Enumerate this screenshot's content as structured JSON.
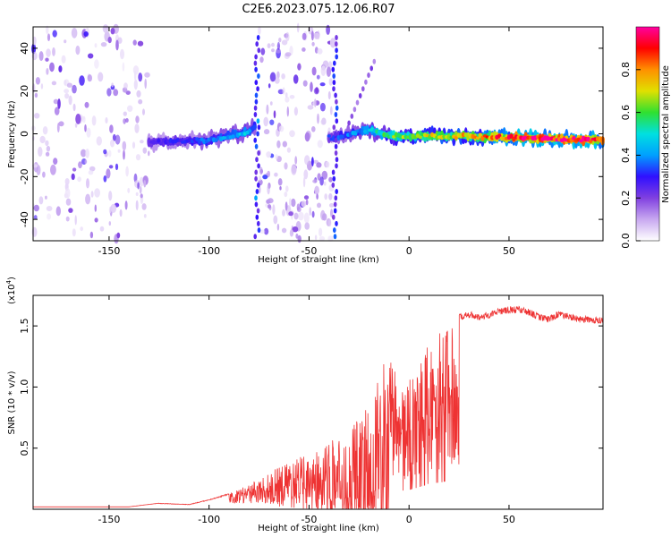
{
  "title": "C2E6.2023.075.12.06.R07",
  "colors": {
    "snr_line": "#ee3333",
    "colormap": [
      "#ffffff",
      "#c8a8f0",
      "#8040e0",
      "#3010ff",
      "#00a0ff",
      "#00e0e0",
      "#30e030",
      "#e0e000",
      "#ff9000",
      "#ff0000",
      "#ff00a0"
    ]
  },
  "chart_data": [
    {
      "type": "heatmap",
      "xlabel": "Height of straight line (km)",
      "ylabel": "Frequency (Hz)",
      "xlim": [
        -188,
        97
      ],
      "ylim": [
        -50,
        50
      ],
      "x_ticks": [
        -150,
        -100,
        -50,
        0,
        50
      ],
      "y_ticks": [
        -40,
        -20,
        0,
        20,
        40
      ],
      "colorbar": {
        "label": "Normalized spectral amplitude",
        "range": [
          0,
          1
        ],
        "ticks": [
          "0.0",
          "0.2",
          "0.4",
          "0.6",
          "0.8"
        ]
      },
      "noise_regions": [
        {
          "x": [
            -188,
            -130
          ],
          "density": 0.55
        },
        {
          "x": [
            -75,
            -38
          ],
          "density": 0.85
        }
      ],
      "ridge": {
        "x": [
          -130,
          -100,
          -80,
          -76,
          -38,
          -20,
          -10,
          0,
          20,
          40,
          60,
          80,
          97
        ],
        "freq": [
          -4,
          -3,
          1,
          4,
          -2,
          2,
          -1,
          -1,
          -1,
          -1.5,
          -2,
          -2.5,
          -3
        ],
        "amplitude": [
          0.25,
          0.35,
          0.45,
          0.3,
          0.3,
          0.45,
          0.6,
          0.65,
          0.7,
          0.8,
          0.95,
          0.95,
          0.9
        ]
      }
    },
    {
      "type": "line",
      "xlabel": "Height of straight line (km)",
      "ylabel": "SNR (10 * v/v)",
      "multiplier": "(x10",
      "multiplier_exp": "4",
      "xlim": [
        -188,
        97
      ],
      "ylim": [
        0,
        1.75
      ],
      "x_ticks": [
        -150,
        -100,
        -50,
        0,
        50
      ],
      "y_ticks": [
        "0.5",
        "1.0",
        "1.5"
      ],
      "envelope": {
        "x": [
          -188,
          -140,
          -125,
          -110,
          -100,
          -90,
          -80,
          -70,
          -60,
          -50,
          -40,
          -30,
          -20,
          -15,
          -10,
          -5,
          0,
          5,
          10,
          15,
          20,
          25,
          30,
          35,
          40,
          45,
          50,
          55,
          60,
          65,
          70,
          75,
          80,
          85,
          90,
          97
        ],
        "y": [
          0.02,
          0.02,
          0.05,
          0.04,
          0.08,
          0.13,
          0.2,
          0.3,
          0.4,
          0.45,
          0.55,
          0.65,
          0.9,
          1.1,
          1.3,
          1.0,
          1.05,
          1.2,
          1.4,
          1.45,
          1.55,
          1.6,
          1.62,
          1.6,
          1.62,
          1.65,
          1.66,
          1.66,
          1.64,
          1.6,
          1.58,
          1.63,
          1.6,
          1.58,
          1.58,
          1.57
        ]
      }
    }
  ]
}
